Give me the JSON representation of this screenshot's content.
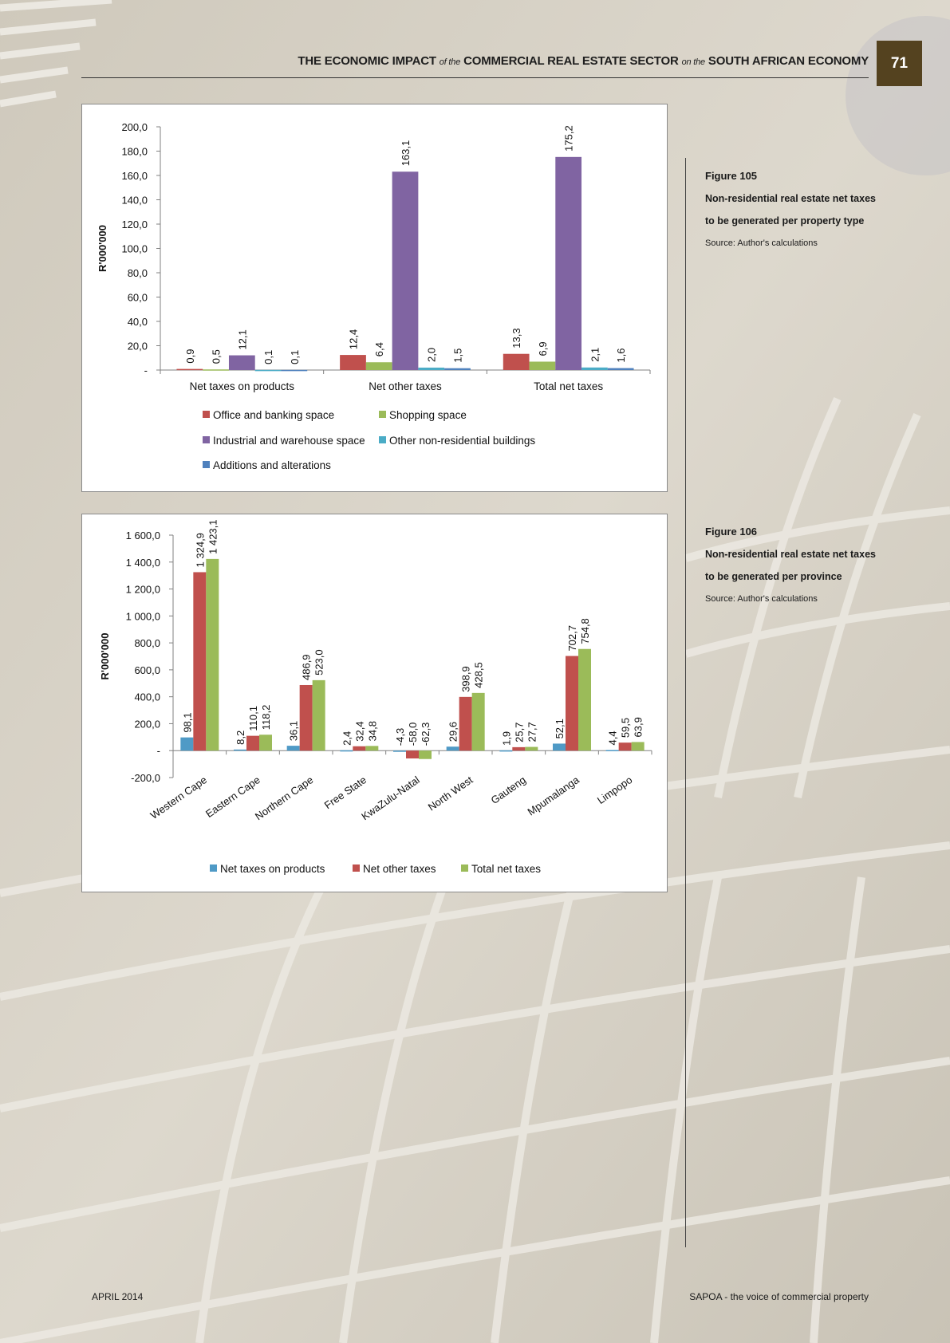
{
  "header": {
    "title_part1": "THE ECONOMIC IMPACT",
    "title_part2": "of the",
    "title_part3": "COMMERCIAL REAL ESTATE SECTOR",
    "title_part4": "on the",
    "title_part5": "SOUTH AFRICAN ECONOMY",
    "page_number": "71"
  },
  "captions": [
    {
      "number": "Figure 105",
      "title_line1": "Non-residential real estate net taxes",
      "title_line2": "to be generated per property type",
      "source": "Source: Author's calculations"
    },
    {
      "number": "Figure 106",
      "title_line1": "Non-residential real estate net taxes",
      "title_line2": "to be generated per province",
      "source": "Source: Author's calculations"
    }
  ],
  "footer": {
    "left": "APRIL 2014",
    "right": "SAPOA - the voice of commercial property"
  },
  "colors": {
    "office": "#c0504d",
    "shopping": "#9bbb59",
    "industrial": "#8064a2",
    "other": "#4bacc6",
    "additions": "#4f81bd",
    "products": "#4f9ac6",
    "net_other": "#c0504d",
    "total": "#9bbb59",
    "page_box": "#54421f"
  },
  "chart_data": [
    {
      "type": "bar",
      "title": "",
      "ylabel": "R'000'000",
      "xlabel": "",
      "ylim": [
        0,
        200
      ],
      "ytick_labels": [
        "-",
        "20,0",
        "40,0",
        "60,0",
        "80,0",
        "100,0",
        "120,0",
        "140,0",
        "160,0",
        "180,0",
        "200,0"
      ],
      "categories": [
        "Net taxes on products",
        "Net other taxes",
        "Total net taxes"
      ],
      "series": [
        {
          "name": "Office and banking space",
          "color_key": "office",
          "values": [
            0.9,
            12.4,
            13.3
          ],
          "labels": [
            "0,9",
            "12,4",
            "13,3"
          ]
        },
        {
          "name": "Shopping space",
          "color_key": "shopping",
          "values": [
            0.5,
            6.4,
            6.9
          ],
          "labels": [
            "0,5",
            "6,4",
            "6,9"
          ]
        },
        {
          "name": "Industrial and warehouse space",
          "color_key": "industrial",
          "values": [
            12.1,
            163.1,
            175.2
          ],
          "labels": [
            "12,1",
            "163,1",
            "175,2"
          ]
        },
        {
          "name": "Other non-residential buildings",
          "color_key": "other",
          "values": [
            0.1,
            2.0,
            2.1
          ],
          "labels": [
            "0,1",
            "2,0",
            "2,1"
          ]
        },
        {
          "name": "Additions and alterations",
          "color_key": "additions",
          "values": [
            0.1,
            1.5,
            1.6
          ],
          "labels": [
            "0,1",
            "1,5",
            "1,6"
          ]
        }
      ],
      "legend": "bottom"
    },
    {
      "type": "bar",
      "title": "",
      "ylabel": "R'000'000",
      "xlabel": "",
      "ylim": [
        -200,
        1600
      ],
      "ytick_labels": [
        "-200,0",
        "-",
        "200,0",
        "400,0",
        "600,0",
        "800,0",
        "1 000,0",
        "1 200,0",
        "1 400,0",
        "1 600,0"
      ],
      "categories": [
        "Western Cape",
        "Eastern Cape",
        "Northern Cape",
        "Free State",
        "KwaZulu-Natal",
        "North West",
        "Gauteng",
        "Mpumalanga",
        "Limpopo"
      ],
      "series": [
        {
          "name": "Net taxes on products",
          "color_key": "products",
          "values": [
            98.1,
            8.2,
            36.1,
            2.4,
            -4.3,
            29.6,
            1.9,
            52.1,
            4.4
          ],
          "labels": [
            "98,1",
            "8,2",
            "36,1",
            "2,4",
            "-4,3",
            "29,6",
            "1,9",
            "52,1",
            "4,4"
          ]
        },
        {
          "name": "Net other taxes",
          "color_key": "net_other",
          "values": [
            1324.9,
            110.1,
            486.9,
            32.4,
            -58.0,
            398.9,
            25.7,
            702.7,
            59.5
          ],
          "labels": [
            "1 324,9",
            "110,1",
            "486,9",
            "32,4",
            "-58,0",
            "398,9",
            "25,7",
            "702,7",
            "59,5"
          ]
        },
        {
          "name": "Total net taxes",
          "color_key": "total",
          "values": [
            1423.1,
            118.2,
            523.0,
            34.8,
            -62.3,
            428.5,
            27.7,
            754.8,
            63.9
          ],
          "labels": [
            "1 423,1",
            "118,2",
            "523,0",
            "34,8",
            "-62,3",
            "428,5",
            "27,7",
            "754,8",
            "63,9"
          ]
        }
      ],
      "legend": "bottom"
    }
  ]
}
